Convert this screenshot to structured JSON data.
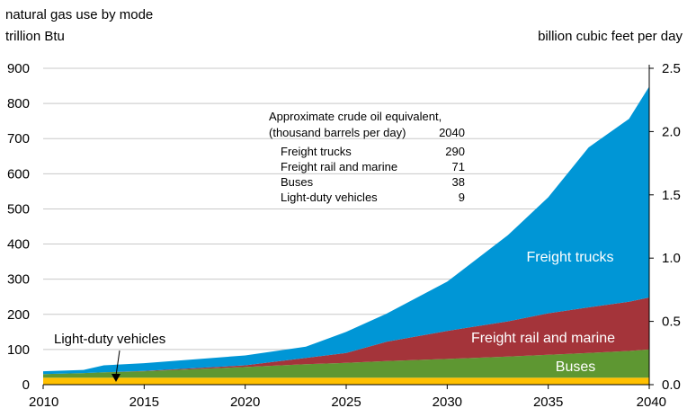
{
  "chart_data": {
    "type": "area",
    "stacked": true,
    "title": "natural gas use by mode",
    "ylabel_left": "trillion Btu",
    "ylabel_right": "billion cubic feet per day",
    "xlim": [
      2010,
      2040
    ],
    "ylim_left": [
      0,
      900
    ],
    "ylim_right": [
      0,
      2.5
    ],
    "x_ticks": [
      "2010",
      "2015",
      "2020",
      "2025",
      "2030",
      "2035",
      "2040"
    ],
    "y_ticks_left": [
      "0",
      "100",
      "200",
      "300",
      "400",
      "500",
      "600",
      "700",
      "800",
      "900"
    ],
    "y_ticks_right": [
      "0.0",
      "0.5",
      "1.0",
      "1.5",
      "2.0",
      "2.5"
    ],
    "grid": "horizontal",
    "x": [
      2010,
      2012,
      2013,
      2015,
      2020,
      2023,
      2025,
      2027,
      2030,
      2033,
      2035,
      2037,
      2039,
      2040
    ],
    "series": [
      {
        "name": "Light-duty vehicles",
        "color": "#ffc000",
        "values": [
          20,
          20,
          20,
          20,
          20,
          20,
          20,
          20,
          20,
          20,
          20,
          20,
          20,
          20
        ]
      },
      {
        "name": "Buses",
        "color": "#5e9732",
        "values": [
          10,
          13,
          15,
          18,
          30,
          38,
          42,
          47,
          53,
          60,
          65,
          70,
          76,
          80
        ]
      },
      {
        "name": "Freight rail and marine",
        "color": "#a4343a",
        "values": [
          0,
          0,
          0,
          1,
          5,
          18,
          28,
          55,
          80,
          100,
          118,
          130,
          140,
          148
        ]
      },
      {
        "name": "Freight trucks",
        "color": "#0096d6",
        "values": [
          8,
          9,
          20,
          22,
          28,
          32,
          60,
          80,
          140,
          245,
          330,
          455,
          520,
          600
        ]
      }
    ],
    "annotations": {
      "area_labels": [
        "Freight trucks",
        "Freight rail and marine",
        "Buses"
      ],
      "callout": "Light-duty vehicles"
    },
    "inset_table": {
      "heading_line1": "Approximate crude oil equivalent,",
      "heading_line2": "(thousand barrels per day)",
      "year": "2040",
      "rows": [
        {
          "label": "Freight trucks",
          "value": "290"
        },
        {
          "label": "Freight rail and marine",
          "value": "71"
        },
        {
          "label": "Buses",
          "value": "38"
        },
        {
          "label": "Light-duty vehicles",
          "value": "9"
        }
      ]
    }
  }
}
